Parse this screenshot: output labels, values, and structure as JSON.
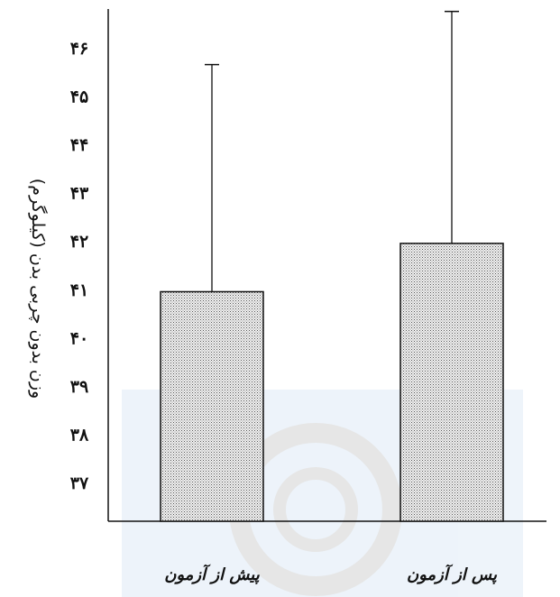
{
  "chart_data": {
    "type": "bar",
    "categories": [
      "پیش از آزمون",
      "پس از آزمون"
    ],
    "values": [
      40.95,
      41.95
    ],
    "error_upper": [
      45.65,
      46.75
    ],
    "ylabel": "وزن بدون چربی بدن (کیلوگرم)",
    "ylim": [
      36.2,
      46.8
    ],
    "yticks": [
      "۳۷",
      "۳۸",
      "۳۹",
      "۴۰",
      "۴۱",
      "۴۲",
      "۴۳",
      "۴۴",
      "۴۵",
      "۴۶"
    ],
    "ytick_values": [
      37,
      38,
      39,
      40,
      41,
      42,
      43,
      44,
      45,
      46
    ],
    "bar_fill": "dotted gray",
    "grid": false
  }
}
